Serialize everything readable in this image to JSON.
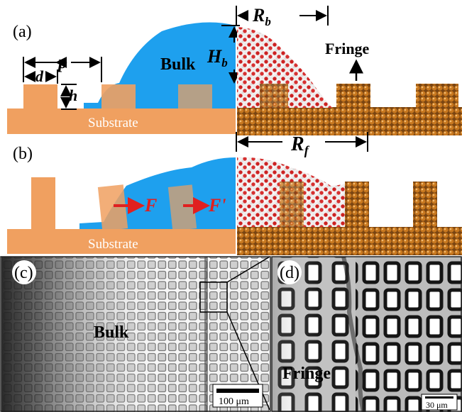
{
  "panel_a": {
    "label": "(a)",
    "dim_p": "p",
    "dim_d": "d",
    "dim_h": "h",
    "bulk_label": "Bulk",
    "height_label": "H",
    "height_sub": "b",
    "radius_b_label": "R",
    "radius_b_sub": "b",
    "fringe_label": "Fringe",
    "substrate_label": "Substrate"
  },
  "panel_b": {
    "label": "(b)",
    "force_1": "F",
    "force_2": "F'",
    "radius_f_label": "R",
    "radius_f_sub": "f",
    "substrate_label": "Substrate"
  },
  "panel_c": {
    "label": "(c)",
    "region_label": "Bulk",
    "scale_bar": "100 μm"
  },
  "panel_d": {
    "label": "(d)",
    "region_label": "Fringe",
    "scale_bar": "30 μm"
  },
  "colors": {
    "pillar_orange": "#f0a060",
    "water_blue": "#1ea0ee",
    "force_red": "#e02020",
    "atom_copper": "#c87a2a",
    "oxygen_red": "#cc2222"
  }
}
